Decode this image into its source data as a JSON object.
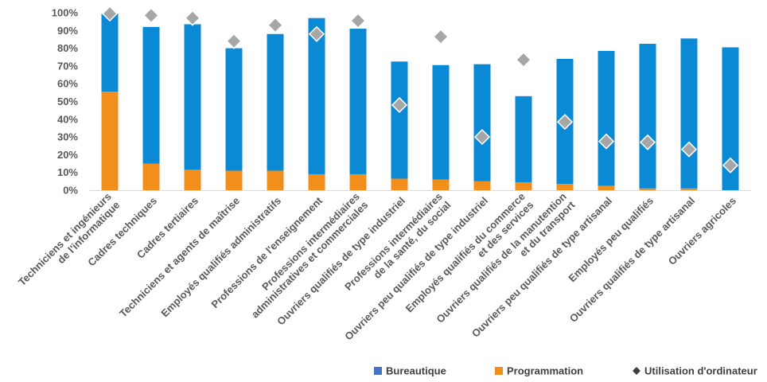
{
  "chart_data": {
    "type": "bar",
    "stacked": true,
    "categories": [
      [
        "Techniciens et ingénieurs",
        "de l'informatique"
      ],
      [
        "Cadres techniques"
      ],
      [
        "Cadres tertiaires"
      ],
      [
        "Techniciens et agents de maîtrise"
      ],
      [
        "Employés qualifiés administratifs"
      ],
      [
        "Professions de l'enseignement"
      ],
      [
        "Professions intermédiaires",
        "administratives et commerciales"
      ],
      [
        "Ouvriers qualifiés de type industriel"
      ],
      [
        "Professions intermédiaires",
        "de la santé, du social"
      ],
      [
        "Ouvriers peu qualifiés de type industriel"
      ],
      [
        "Employés qualifiés du commerce",
        "et des services"
      ],
      [
        "Ouvriers qualifiés de la manutention",
        "et du transport"
      ],
      [
        "Ouvriers peu qualifiés de type artisanal"
      ],
      [
        "Employés peu qualifiés"
      ],
      [
        "Ouvriers qualifiés de type artisanal"
      ],
      [
        "Ouvriers agricoles"
      ]
    ],
    "series": [
      {
        "name": "Programmation",
        "kind": "bar",
        "color": "#f28e1c",
        "values": [
          55.5,
          15,
          11.5,
          11,
          11,
          9,
          9,
          6.5,
          6,
          5,
          4.5,
          3.5,
          2.5,
          1,
          1,
          0
        ]
      },
      {
        "name": "Bureautique",
        "kind": "bar",
        "color": "#0a8ad4",
        "values": [
          44,
          77,
          82,
          69,
          77,
          88,
          82,
          66,
          64.5,
          66,
          48.5,
          70.5,
          76,
          81.5,
          84.5,
          80.5
        ]
      },
      {
        "name": "Utilisation d'ordinateur",
        "kind": "marker",
        "color": "#a6a6a6",
        "values": [
          99.5,
          98.5,
          97,
          84,
          93,
          88,
          95.5,
          48,
          86.5,
          30,
          73.5,
          38.5,
          27.5,
          27,
          23,
          14
        ]
      }
    ],
    "yticks": [
      "0%",
      "10%",
      "20%",
      "30%",
      "40%",
      "50%",
      "60%",
      "70%",
      "80%",
      "90%",
      "100%"
    ],
    "ylim": [
      0,
      100
    ],
    "grid": false,
    "legend_position": "bottom",
    "legend": [
      {
        "label": "Bureautique",
        "shape": "square",
        "color": "#4472c4"
      },
      {
        "label": "Programmation",
        "shape": "square",
        "color": "#f28e1c"
      },
      {
        "label": "Utilisation d'ordinateur",
        "shape": "diamond",
        "color": "#404040"
      }
    ]
  }
}
